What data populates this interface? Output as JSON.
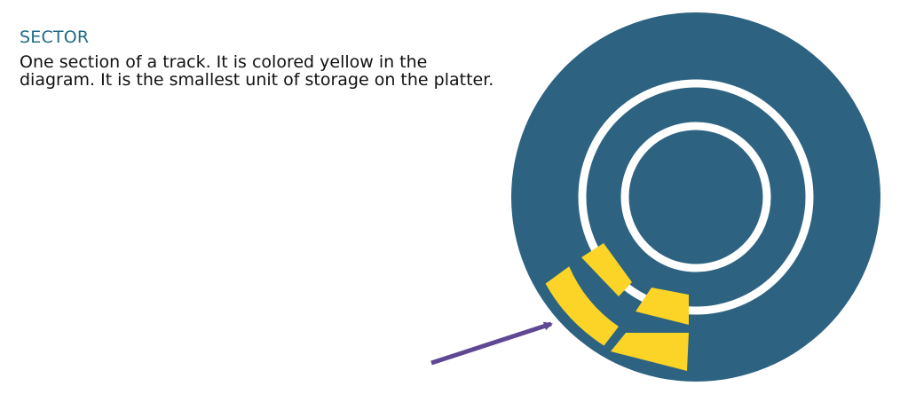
{
  "term": {
    "heading": "SECTOR",
    "description_lines": [
      "One section of a track. It is colored yellow in the",
      "diagram. It is the smallest unit of storage on the platter."
    ]
  },
  "colors": {
    "heading": "#1f6b86",
    "platter": "#2d6381",
    "track_ring": "#ffffff",
    "sector": "#fbd427",
    "arrow": "#5e4894"
  }
}
